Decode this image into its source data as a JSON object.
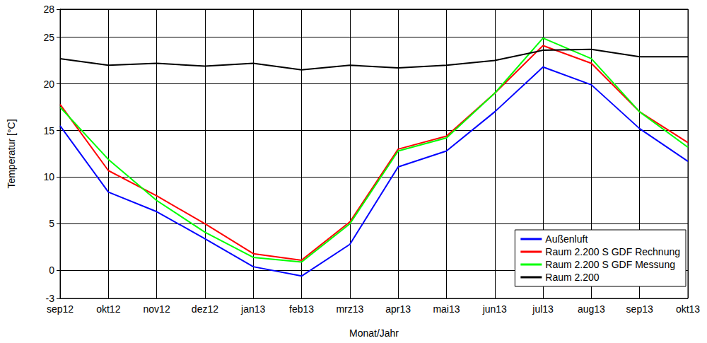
{
  "chart_data": {
    "type": "line",
    "x_label": "Monat/Jahr",
    "y_label": "Temperatur [°C]",
    "categories": [
      "sep12",
      "okt12",
      "nov12",
      "dez12",
      "jan13",
      "feb13",
      "mrz13",
      "apr13",
      "mai13",
      "jun13",
      "jul13",
      "aug13",
      "sep13",
      "okt13"
    ],
    "series": [
      {
        "name": "Außenluft",
        "color": "#0000ff",
        "values": [
          15.5,
          8.4,
          6.3,
          3.4,
          0.4,
          -0.6,
          2.8,
          11.1,
          12.8,
          17.0,
          21.8,
          19.9,
          15.2,
          11.7
        ]
      },
      {
        "name": "Raum 2.200 S GDF Rechnung",
        "color": "#ff0000",
        "values": [
          17.8,
          10.7,
          8.0,
          5.0,
          1.8,
          1.1,
          5.2,
          13.0,
          14.4,
          19.0,
          24.1,
          22.2,
          17.0,
          13.7
        ]
      },
      {
        "name": "Raum 2.200 S GDF Messung",
        "color": "#00ff00",
        "values": [
          17.5,
          11.9,
          7.5,
          4.1,
          1.4,
          0.9,
          5.0,
          12.8,
          14.2,
          19.0,
          24.9,
          22.7,
          17.0,
          13.2
        ]
      },
      {
        "name": "Raum 2.200",
        "color": "#000000",
        "values": [
          22.7,
          22.0,
          22.2,
          21.9,
          22.2,
          21.5,
          22.0,
          21.7,
          22.0,
          22.5,
          23.6,
          23.7,
          22.9,
          22.9
        ]
      }
    ],
    "ylim": [
      -3,
      28
    ],
    "yticks": [
      -3,
      0,
      5,
      10,
      15,
      20,
      25,
      28
    ],
    "grid": true,
    "legend": "lower right"
  }
}
